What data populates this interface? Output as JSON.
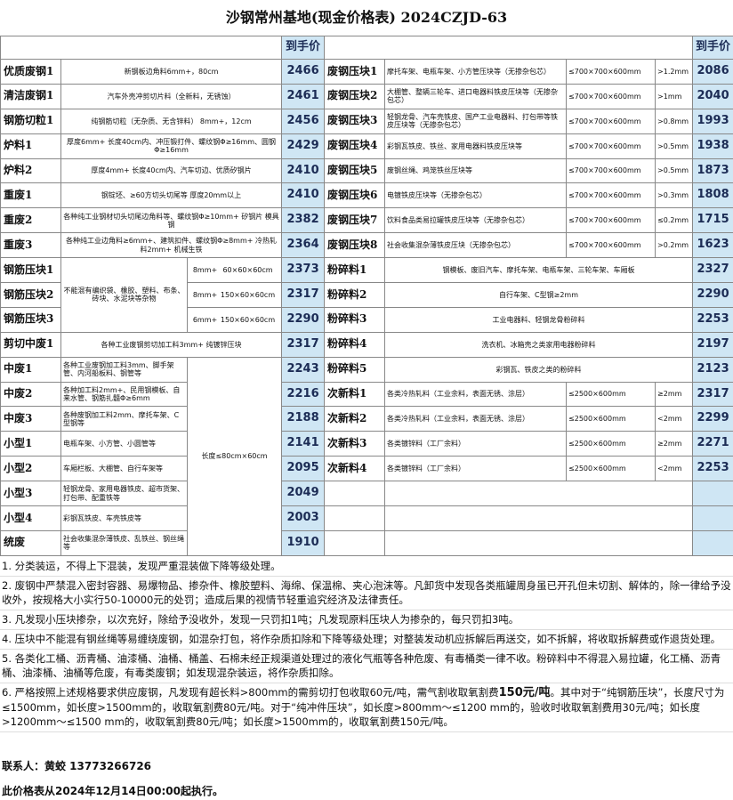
{
  "title": "沙钢常州基地(现金价格表) 2024CZJD-63",
  "price_header": "到手价",
  "left": {
    "rebar_desc": "不能混有编织袋、橡胶、塑料、布条、砖块、水泥块等杂物",
    "medium_spec": "长度≤80cm×60cm",
    "rows": [
      {
        "name": "优质废钢1",
        "desc": "新钢板边角料6mm+，80cm",
        "price": 2466
      },
      {
        "name": "清洁废钢1",
        "desc": "汽车外壳冲剪切片料（全新料，无锈蚀）",
        "price": 2461
      },
      {
        "name": "钢筋切粒1",
        "desc": "纯钢筋切粒（无杂质、无含锌料） 8mm+，12cm",
        "price": 2456
      },
      {
        "name": "炉料1",
        "desc": "厚度6mm+ 长度40cm内、冲压锻打件、螺纹钢Φ≥16mm、圆钢Φ≥16mm",
        "price": 2429
      },
      {
        "name": "炉料2",
        "desc": "厚度4mm+ 长度40cm内、汽车切边、优质矽钢片",
        "price": 2410
      },
      {
        "name": "重废1",
        "desc": "钢锭坯、≥60方切头切尾等 厚度20mm以上",
        "price": 2410
      },
      {
        "name": "重废2",
        "desc": "各种纯工业钢材切头切尾边角料等、螺纹钢Φ≥10mm+ 矽钢片 模具钢",
        "price": 2382
      },
      {
        "name": "重废3",
        "desc": "各种纯工业边角料≥6mm+、建筑扣件、螺纹钢Φ≥8mm+ 冷热轧料2mm+ 机械生铁",
        "price": 2364
      },
      {
        "name": "钢筋压块1",
        "thickness": "8mm+",
        "size": "60×60×60cm",
        "price": 2373
      },
      {
        "name": "钢筋压块2",
        "thickness": "8mm+",
        "size": "150×60×60cm",
        "price": 2317
      },
      {
        "name": "钢筋压块3",
        "thickness": "6mm+",
        "size": "150×60×60cm",
        "price": 2290
      },
      {
        "name": "剪切中废1",
        "desc": "各种工业废钢剪切加工料3mm+ 纯镀锌压块",
        "price": 2317
      },
      {
        "name": "中废1",
        "desc": "各种工业废钢加工料3mm、脚手架管、内河船板料、钢管等",
        "price": 2243
      },
      {
        "name": "中废2",
        "desc": "各种加工料2mm+、民用钢模板、自来水管、钢筋扎髓Φ≥6mm",
        "price": 2216
      },
      {
        "name": "中废3",
        "desc": "各种废钢加工料2mm、摩托车架、C型钢等",
        "price": 2188
      },
      {
        "name": "小型1",
        "desc": "电瓶车架、小方管、小圆管等",
        "price": 2141
      },
      {
        "name": "小型2",
        "desc": "车厢栏板、大棚管、自行车架等",
        "price": 2095
      },
      {
        "name": "小型3",
        "desc": "轻钢龙骨、家用电器铁皮、超市货架、打包带、配重铁等",
        "price": 2049
      },
      {
        "name": "小型4",
        "desc": "彩钢瓦铁皮、车壳铁皮等",
        "price": 2003
      },
      {
        "name": "统废",
        "desc": "社会收集混杂薄铁皮、乱铁丝、钢丝绳等",
        "price": 1910
      }
    ]
  },
  "right": {
    "rows": [
      {
        "name": "废钢压块1",
        "desc": "摩托车架、电瓶车架、小方管压块等（无掺杂包芯）",
        "size": "≤700×700×600mm",
        "thickness": ">1.2mm",
        "price": 2086
      },
      {
        "name": "废钢压块2",
        "desc": "大棚管、整辆三轮车、进口电器料铁皮压块等（无掺杂包芯）",
        "size": "≤700×700×600mm",
        "thickness": ">1mm",
        "price": 2040
      },
      {
        "name": "废钢压块3",
        "desc": "轻钢龙骨、汽车壳铁皮、国产工业电器料、打包带等铁皮压块等（无掺杂包芯）",
        "size": "≤700×700×600mm",
        "thickness": ">0.8mm",
        "price": 1993
      },
      {
        "name": "废钢压块4",
        "desc": "彩钢瓦铁皮、铁丝、家用电器料铁皮压块等",
        "size": "≤700×700×600mm",
        "thickness": ">0.5mm",
        "price": 1938
      },
      {
        "name": "废钢压块5",
        "desc": "废钢丝绳、鸡笼铁丝压块等",
        "size": "≤700×700×600mm",
        "thickness": ">0.5mm",
        "price": 1873
      },
      {
        "name": "废钢压块6",
        "desc": "电镀铁皮压块等（无掺杂包芯）",
        "size": "≤700×700×600mm",
        "thickness": ">0.3mm",
        "price": 1808
      },
      {
        "name": "废钢压块7",
        "desc": "饮料食品类易拉罐铁皮压块等（无掺杂包芯）",
        "size": "≤700×700×600mm",
        "thickness": "≤0.2mm",
        "price": 1715
      },
      {
        "name": "废钢压块8",
        "desc": "社会收集混杂薄铁皮压块（无掺杂包芯）",
        "size": "≤700×700×600mm",
        "thickness": ">0.2mm",
        "price": 1623
      },
      {
        "name": "粉碎料1",
        "desc": "钢模板、废旧汽车、摩托车架、电瓶车架、三轮车架、车厢板",
        "price": 2327
      },
      {
        "name": "粉碎料2",
        "desc": "自行车架、C型钢≥2mm",
        "price": 2290
      },
      {
        "name": "粉碎料3",
        "desc": "工业电器料、轻钢龙骨粉碎料",
        "price": 2253
      },
      {
        "name": "粉碎料4",
        "desc": "洗衣机、冰箱壳之类家用电器粉碎料",
        "price": 2197
      },
      {
        "name": "粉碎料5",
        "desc": "彩钢瓦、铁皮之类的粉碎料",
        "price": 2123
      },
      {
        "name": "次新料1",
        "desc": "各类冷热轧料（工业余料，表面无锈、涂层）",
        "size": "≤2500×600mm",
        "thickness": "≥2mm",
        "price": 2317
      },
      {
        "name": "次新料2",
        "desc": "各类冷热轧料（工业余料，表面无锈、涂层）",
        "size": "≤2500×600mm",
        "thickness": "<2mm",
        "price": 2299
      },
      {
        "name": "次新料3",
        "desc": "各类镀锌料（工厂余料）",
        "size": "≤2500×600mm",
        "thickness": "≥2mm",
        "price": 2271
      },
      {
        "name": "次新料4",
        "desc": "各类镀锌料（工厂余料）",
        "size": "≤2500×600mm",
        "thickness": "<2mm",
        "price": 2253
      }
    ]
  },
  "notes": [
    "1. 分类装运，不得上下混装，发现严重混装做下降等级处理。",
    "2. 废钢中严禁混入密封容器、易爆物品、掺杂件、橡胶塑料、海绵、保温棉、夹心泡沫等。凡卸货中发现各类瓶罐周身虽已开孔但未切割、解体的，除一律给予没收外，按规格大小实行50-10000元的处罚；造成后果的视情节轻重追究经济及法律责任。",
    "3. 凡发现小压块掺杂，以次充好，除给予没收外，发现一只罚扣1吨；凡发现原料压块人为掺杂的，每只罚扣3吨。",
    "4. 压块中不能混有钢丝绳等易缠绕废钢，如混杂打包，将作杂质扣除和下降等级处理；对整装发动机应拆解后再送交，如不拆解，将收取拆解费或作退货处理。",
    "5. 各类化工桶、沥青桶、油漆桶、油桶、桶盖、石棉未经正规渠道处理过的液化气瓶等各种危废、有毒桶类一律不收。粉碎料中不得混入易拉罐，化工桶、沥青桶、油漆桶、油桶等危废，有毒类废钢；如发现混杂装运，将作杂质扣除。",
    [
      "6. 严格按照上述规格要求供应废钢，凡发现有超长料>800mm的需剪切打包收取60元/吨，需气割收取氧割费",
      "150元/吨",
      "。其中对于“纯钢筋压块”，长度尺寸为≤1500mm，如长度>1500mm的，收取氧割费80元/吨。对于“纯冲件压块”，如长度>800mm～≤1200 mm的，验收时收取氧割费用30元/吨；如长度>1200mm～≤1500 mm的，收取氧割费80元/吨；如长度>1500mm的，收取氧割费150元/吨。"
    ]
  ],
  "contact": "联系人：黄蛟 13773266726",
  "effective": "此价格表从2024年12月14日00:00起执行。"
}
